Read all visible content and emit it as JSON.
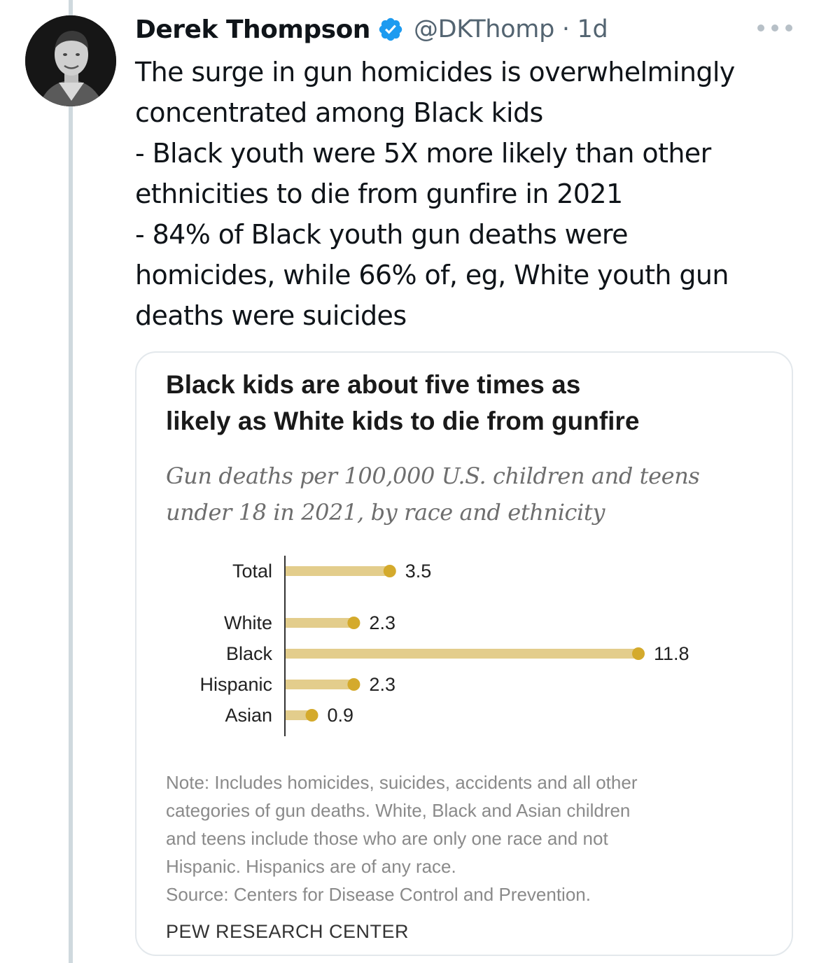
{
  "tweet": {
    "author_name": "Derek Thompson",
    "handle_time": "@DKThomp · 1d",
    "text_lines": [
      "The surge in gun homicides is overwhelmingly",
      "concentrated among Black kids",
      "- Black youth were 5X more likely than other",
      "ethnicities to die from gunfire in 2021",
      "- 84% of Black youth gun deaths were",
      "homicides, while 66% of, eg, White youth gun",
      "deaths were suicides"
    ]
  },
  "icons": {
    "verified": "verified-badge-icon",
    "more": "more-options-icon"
  },
  "colors": {
    "bar": "#e3cd8c",
    "dot": "#d4aa2c",
    "verified": "#1d9bf0"
  },
  "chart_data": {
    "type": "bar",
    "orientation": "horizontal",
    "title_lines": [
      "Black kids are about five times as",
      "likely as White kids to die from gunfire"
    ],
    "subtitle_lines": [
      "Gun deaths per 100,000 U.S. children and teens",
      "under 18 in 2021, by race and ethnicity"
    ],
    "categories": [
      "Total",
      "White",
      "Black",
      "Hispanic",
      "Asian"
    ],
    "values": [
      3.5,
      2.3,
      11.8,
      2.3,
      0.9
    ],
    "value_labels": [
      "3.5",
      "2.3",
      "11.8",
      "2.3",
      "0.9"
    ],
    "xlim": [
      0,
      11.8
    ],
    "grid": false,
    "note_lines": [
      "Note: Includes homicides, suicides, accidents and all other",
      "categories of gun deaths. White, Black and Asian children",
      "and teens include those who are only one race and not",
      "Hispanic. Hispanics are of any race."
    ],
    "source": "Source: Centers for Disease Control and Prevention.",
    "brand": "PEW RESEARCH CENTER"
  }
}
